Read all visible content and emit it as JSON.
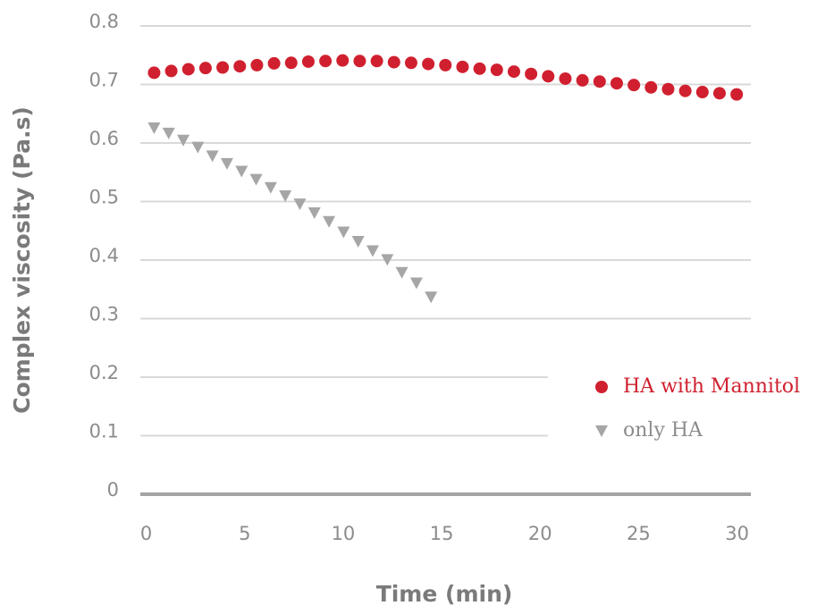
{
  "chart_data": {
    "type": "scatter",
    "xlabel": "Time (min)",
    "ylabel": "Complex viscosity (Pa.s)",
    "xlim": [
      -0.3,
      30.7
    ],
    "ylim": [
      0,
      0.8
    ],
    "xticks": [
      0,
      5,
      10,
      15,
      20,
      25,
      30
    ],
    "yticks": [
      0,
      0.1,
      0.2,
      0.3,
      0.4,
      0.5,
      0.6,
      0.7,
      0.8
    ],
    "grid": true,
    "legend": "right",
    "series": [
      {
        "name": "HA with Mannitol",
        "color": "#d0202f",
        "marker": "circle",
        "x": [
          0.4,
          1.27,
          2.14,
          3.01,
          3.88,
          4.75,
          5.62,
          6.49,
          7.36,
          8.23,
          9.1,
          9.97,
          10.84,
          11.71,
          12.58,
          13.45,
          14.32,
          15.19,
          16.06,
          16.93,
          17.8,
          18.67,
          19.54,
          20.41,
          21.28,
          22.15,
          23.02,
          23.89,
          24.76,
          25.63,
          26.5,
          27.37,
          28.24,
          29.11,
          29.98
        ],
        "values": [
          0.72,
          0.723,
          0.726,
          0.728,
          0.729,
          0.731,
          0.733,
          0.736,
          0.737,
          0.739,
          0.74,
          0.741,
          0.74,
          0.74,
          0.738,
          0.737,
          0.735,
          0.733,
          0.73,
          0.727,
          0.725,
          0.722,
          0.718,
          0.714,
          0.71,
          0.707,
          0.705,
          0.702,
          0.699,
          0.695,
          0.692,
          0.689,
          0.687,
          0.685,
          0.683
        ]
      },
      {
        "name": "only HA",
        "color": "#a6a6a6",
        "marker": "triangle-down",
        "x": [
          0.4,
          1.14,
          1.88,
          2.62,
          3.36,
          4.1,
          4.84,
          5.58,
          6.32,
          7.06,
          7.8,
          8.54,
          9.28,
          10.02,
          10.76,
          11.5,
          12.24,
          12.98,
          13.72,
          14.46
        ],
        "values": [
          0.626,
          0.617,
          0.605,
          0.593,
          0.578,
          0.565,
          0.552,
          0.538,
          0.524,
          0.51,
          0.496,
          0.481,
          0.466,
          0.448,
          0.432,
          0.416,
          0.401,
          0.379,
          0.361,
          0.337
        ]
      }
    ]
  }
}
